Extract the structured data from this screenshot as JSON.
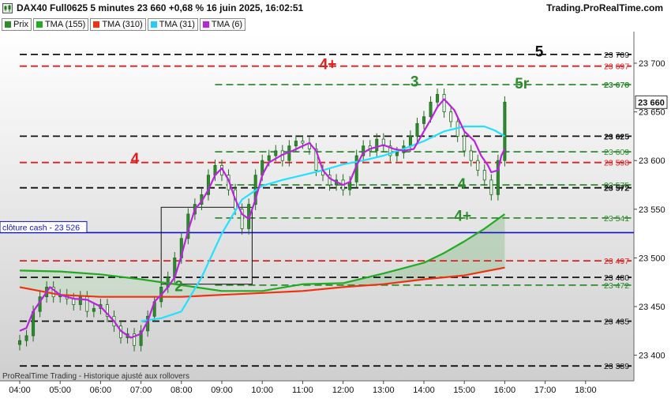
{
  "header": {
    "title": "DAX40 Full0625 5 minutes 23 660 +0,68 % 16 juin 2025, 16:02:51",
    "brand": "Trading.ProRealTime.com"
  },
  "legend": [
    {
      "label": "Prix",
      "color": "#2e8b2e"
    },
    {
      "label": "TMA (155)",
      "color": "#22aa22"
    },
    {
      "label": "TMA (310)",
      "color": "#ee3311"
    },
    {
      "label": "TMA (31)",
      "color": "#22ccff"
    },
    {
      "label": "TMA (6)",
      "color": "#bb22dd"
    }
  ],
  "footer_text": "ProRealTime Trading - Historique ajusté aux rollovers",
  "chart_data": {
    "type": "line",
    "title": "DAX40 Full0625 5 minutes 23 660 +0,68 % 16 juin 2025, 16:02:51",
    "xlabel": "",
    "ylabel": "",
    "x_ticks": [
      "04:00",
      "05:00",
      "06:00",
      "07:00",
      "08:00",
      "09:00",
      "10:00",
      "11:00",
      "12:00",
      "13:00",
      "14:00",
      "15:00",
      "16:00",
      "17:00",
      "18:00"
    ],
    "y_ticks": [
      23400,
      23450,
      23500,
      23550,
      23600,
      23650,
      23700
    ],
    "y_tick_labels": [
      "23 400",
      "23 450",
      "23 500",
      "23 550",
      "23 600",
      "23 650",
      "23 700"
    ],
    "ylim": [
      23380,
      23725
    ],
    "last_price": {
      "value": 23660,
      "label": "23 660"
    },
    "levels": [
      {
        "value": 23709,
        "label": "23 709",
        "color": "#111111",
        "x_start": "04:00",
        "bold": false
      },
      {
        "value": 23697,
        "label": "23 697",
        "color": "#e02020",
        "x_start": "04:00",
        "bold": false
      },
      {
        "value": 23678,
        "label": "23 678",
        "color": "#2e8b2e",
        "x_start": "08:50",
        "bold": true
      },
      {
        "value": 23625,
        "label": "23 625",
        "color": "#111111",
        "x_start": "04:00",
        "bold": true
      },
      {
        "value": 23609,
        "label": "23 609",
        "color": "#2e8b2e",
        "x_start": "08:50",
        "bold": false
      },
      {
        "value": 23598,
        "label": "23 598",
        "color": "#e02020",
        "x_start": "04:00",
        "bold": false
      },
      {
        "value": 23575,
        "label": "23 575",
        "color": "#2e8b2e",
        "x_start": "08:50",
        "bold": false
      },
      {
        "value": 23572,
        "label": "23 572",
        "color": "#111111",
        "x_start": "04:00",
        "bold": true
      },
      {
        "value": 23541,
        "label": "23 541",
        "color": "#2e8b2e",
        "x_start": "08:50",
        "bold": false
      },
      {
        "value": 23497,
        "label": "23 497",
        "color": "#e02020",
        "x_start": "04:00",
        "bold": false
      },
      {
        "value": 23480,
        "label": "23 480",
        "color": "#111111",
        "x_start": "04:00",
        "bold": false
      },
      {
        "value": 23472,
        "label": "23 472",
        "color": "#2e8b2e",
        "x_start": "08:50",
        "bold": false
      },
      {
        "value": 23435,
        "label": "23 435",
        "color": "#111111",
        "x_start": "04:00",
        "bold": false
      },
      {
        "value": 23389,
        "label": "23 389",
        "color": "#111111",
        "x_start": "04:00",
        "bold": false
      }
    ],
    "close_cash": {
      "value": 23526,
      "label": "clôture cash -  23 526",
      "color": "#1111cc"
    },
    "annotations": [
      {
        "text": "5",
        "x": "16:45",
        "y": 23707,
        "color": "#111111"
      },
      {
        "text": "4+",
        "x": "11:25",
        "y": 23694,
        "color": "#e02020"
      },
      {
        "text": "3",
        "x": "13:40",
        "y": 23676,
        "color": "#2e8b2e"
      },
      {
        "text": "5r",
        "x": "16:15",
        "y": 23674,
        "color": "#2e8b2e"
      },
      {
        "text": "4",
        "x": "06:45",
        "y": 23597,
        "color": "#e02020"
      },
      {
        "text": "4",
        "x": "14:50",
        "y": 23571,
        "color": "#2e8b2e"
      },
      {
        "text": "4+",
        "x": "14:45",
        "y": 23538,
        "color": "#2e8b2e"
      },
      {
        "text": "2",
        "x": "07:50",
        "y": 23466,
        "color": "#2e8b2e"
      }
    ],
    "series": [
      {
        "name": "TMA (155)",
        "color": "#22aa22",
        "width": 2.2,
        "points": [
          [
            "04:00",
            23487
          ],
          [
            "05:00",
            23486
          ],
          [
            "06:00",
            23483
          ],
          [
            "07:00",
            23478
          ],
          [
            "08:00",
            23472
          ],
          [
            "09:00",
            23466
          ],
          [
            "10:00",
            23466
          ],
          [
            "11:00",
            23473
          ],
          [
            "12:00",
            23474
          ],
          [
            "13:00",
            23484
          ],
          [
            "14:00",
            23495
          ],
          [
            "14:30",
            23505
          ],
          [
            "15:00",
            23517
          ],
          [
            "15:30",
            23530
          ],
          [
            "16:00",
            23545
          ]
        ]
      },
      {
        "name": "TMA (310)",
        "color": "#ee3311",
        "width": 2.2,
        "points": [
          [
            "04:00",
            23470
          ],
          [
            "05:00",
            23462
          ],
          [
            "06:00",
            23460
          ],
          [
            "07:00",
            23460
          ],
          [
            "08:00",
            23460
          ],
          [
            "09:00",
            23462
          ],
          [
            "10:00",
            23464
          ],
          [
            "11:00",
            23466
          ],
          [
            "12:00",
            23470
          ],
          [
            "13:00",
            23473
          ],
          [
            "14:00",
            23478
          ],
          [
            "15:00",
            23482
          ],
          [
            "15:30",
            23486
          ],
          [
            "16:00",
            23490
          ]
        ]
      },
      {
        "name": "TMA (31)",
        "color": "#22e0ff",
        "width": 2.2,
        "points": [
          [
            "07:00",
            23435
          ],
          [
            "07:30",
            23438
          ],
          [
            "08:00",
            23445
          ],
          [
            "08:30",
            23480
          ],
          [
            "09:00",
            23525
          ],
          [
            "09:30",
            23560
          ],
          [
            "10:00",
            23574
          ],
          [
            "10:30",
            23580
          ],
          [
            "11:00",
            23585
          ],
          [
            "11:30",
            23590
          ],
          [
            "12:00",
            23596
          ],
          [
            "12:30",
            23600
          ],
          [
            "13:00",
            23605
          ],
          [
            "13:30",
            23612
          ],
          [
            "14:00",
            23620
          ],
          [
            "14:30",
            23630
          ],
          [
            "15:00",
            23635
          ],
          [
            "15:30",
            23635
          ],
          [
            "15:45",
            23631
          ],
          [
            "16:00",
            23625
          ]
        ]
      },
      {
        "name": "TMA (6)",
        "color": "#bb22dd",
        "width": 2.2,
        "points": [
          [
            "04:00",
            23425
          ],
          [
            "04:10",
            23428
          ],
          [
            "04:20",
            23445
          ],
          [
            "04:30",
            23455
          ],
          [
            "04:45",
            23470
          ],
          [
            "05:00",
            23462
          ],
          [
            "05:20",
            23458
          ],
          [
            "05:40",
            23457
          ],
          [
            "06:00",
            23450
          ],
          [
            "06:20",
            23435
          ],
          [
            "06:30",
            23425
          ],
          [
            "06:45",
            23418
          ],
          [
            "07:00",
            23422
          ],
          [
            "07:10",
            23435
          ],
          [
            "07:20",
            23455
          ],
          [
            "07:30",
            23462
          ],
          [
            "07:40",
            23470
          ],
          [
            "07:50",
            23480
          ],
          [
            "08:00",
            23502
          ],
          [
            "08:10",
            23528
          ],
          [
            "08:20",
            23550
          ],
          [
            "08:30",
            23558
          ],
          [
            "08:40",
            23570
          ],
          [
            "08:50",
            23585
          ],
          [
            "09:00",
            23592
          ],
          [
            "09:10",
            23580
          ],
          [
            "09:20",
            23560
          ],
          [
            "09:30",
            23545
          ],
          [
            "09:40",
            23540
          ],
          [
            "09:50",
            23560
          ],
          [
            "10:00",
            23585
          ],
          [
            "10:10",
            23598
          ],
          [
            "10:30",
            23606
          ],
          [
            "10:45",
            23610
          ],
          [
            "11:00",
            23615
          ],
          [
            "11:10",
            23618
          ],
          [
            "11:20",
            23610
          ],
          [
            "11:30",
            23590
          ],
          [
            "11:40",
            23582
          ],
          [
            "11:50",
            23578
          ],
          [
            "12:00",
            23575
          ],
          [
            "12:10",
            23578
          ],
          [
            "12:20",
            23595
          ],
          [
            "12:30",
            23608
          ],
          [
            "12:40",
            23612
          ],
          [
            "13:00",
            23616
          ],
          [
            "13:15",
            23612
          ],
          [
            "13:30",
            23610
          ],
          [
            "13:45",
            23612
          ],
          [
            "14:00",
            23630
          ],
          [
            "14:10",
            23642
          ],
          [
            "14:20",
            23655
          ],
          [
            "14:30",
            23663
          ],
          [
            "14:45",
            23652
          ],
          [
            "15:00",
            23630
          ],
          [
            "15:15",
            23620
          ],
          [
            "15:25",
            23605
          ],
          [
            "15:35",
            23595
          ],
          [
            "15:40",
            23588
          ],
          [
            "15:50",
            23590
          ],
          [
            "15:55",
            23605
          ],
          [
            "16:00",
            23612
          ]
        ]
      }
    ],
    "candles_close": [
      [
        "04:00",
        23415
      ],
      [
        "04:10",
        23420
      ],
      [
        "04:20",
        23445
      ],
      [
        "04:30",
        23460
      ],
      [
        "04:40",
        23470
      ],
      [
        "04:50",
        23460
      ],
      [
        "05:00",
        23462
      ],
      [
        "05:10",
        23458
      ],
      [
        "05:20",
        23452
      ],
      [
        "05:30",
        23460
      ],
      [
        "05:40",
        23445
      ],
      [
        "05:50",
        23448
      ],
      [
        "06:00",
        23452
      ],
      [
        "06:10",
        23440
      ],
      [
        "06:20",
        23430
      ],
      [
        "06:30",
        23418
      ],
      [
        "06:40",
        23422
      ],
      [
        "06:50",
        23410
      ],
      [
        "07:00",
        23425
      ],
      [
        "07:10",
        23440
      ],
      [
        "07:20",
        23455
      ],
      [
        "07:30",
        23470
      ],
      [
        "07:40",
        23480
      ],
      [
        "07:50",
        23500
      ],
      [
        "08:00",
        23520
      ],
      [
        "08:10",
        23545
      ],
      [
        "08:20",
        23555
      ],
      [
        "08:30",
        23565
      ],
      [
        "08:40",
        23585
      ],
      [
        "08:50",
        23595
      ],
      [
        "09:00",
        23585
      ],
      [
        "09:10",
        23570
      ],
      [
        "09:20",
        23550
      ],
      [
        "09:30",
        23530
      ],
      [
        "09:40",
        23555
      ],
      [
        "09:50",
        23585
      ],
      [
        "10:00",
        23600
      ],
      [
        "10:10",
        23605
      ],
      [
        "10:20",
        23610
      ],
      [
        "10:30",
        23600
      ],
      [
        "10:40",
        23615
      ],
      [
        "10:50",
        23620
      ],
      [
        "11:00",
        23618
      ],
      [
        "11:10",
        23612
      ],
      [
        "11:20",
        23590
      ],
      [
        "11:30",
        23585
      ],
      [
        "11:40",
        23575
      ],
      [
        "11:50",
        23580
      ],
      [
        "12:00",
        23570
      ],
      [
        "12:10",
        23578
      ],
      [
        "12:20",
        23605
      ],
      [
        "12:30",
        23615
      ],
      [
        "12:40",
        23610
      ],
      [
        "12:50",
        23622
      ],
      [
        "13:00",
        23615
      ],
      [
        "13:10",
        23605
      ],
      [
        "13:20",
        23608
      ],
      [
        "13:30",
        23615
      ],
      [
        "13:40",
        23625
      ],
      [
        "13:50",
        23638
      ],
      [
        "14:00",
        23645
      ],
      [
        "14:10",
        23660
      ],
      [
        "14:20",
        23668
      ],
      [
        "14:30",
        23650
      ],
      [
        "14:40",
        23640
      ],
      [
        "14:50",
        23625
      ],
      [
        "15:00",
        23610
      ],
      [
        "15:10",
        23600
      ],
      [
        "15:20",
        23590
      ],
      [
        "15:30",
        23580
      ],
      [
        "15:40",
        23565
      ],
      [
        "15:50",
        23600
      ],
      [
        "16:00",
        23660
      ]
    ],
    "shaded_box": {
      "x_start": "07:30",
      "x_end": "09:45",
      "y_top": 23552,
      "y_bottom": 23473
    },
    "grid": false,
    "legend_position": "top-left"
  }
}
